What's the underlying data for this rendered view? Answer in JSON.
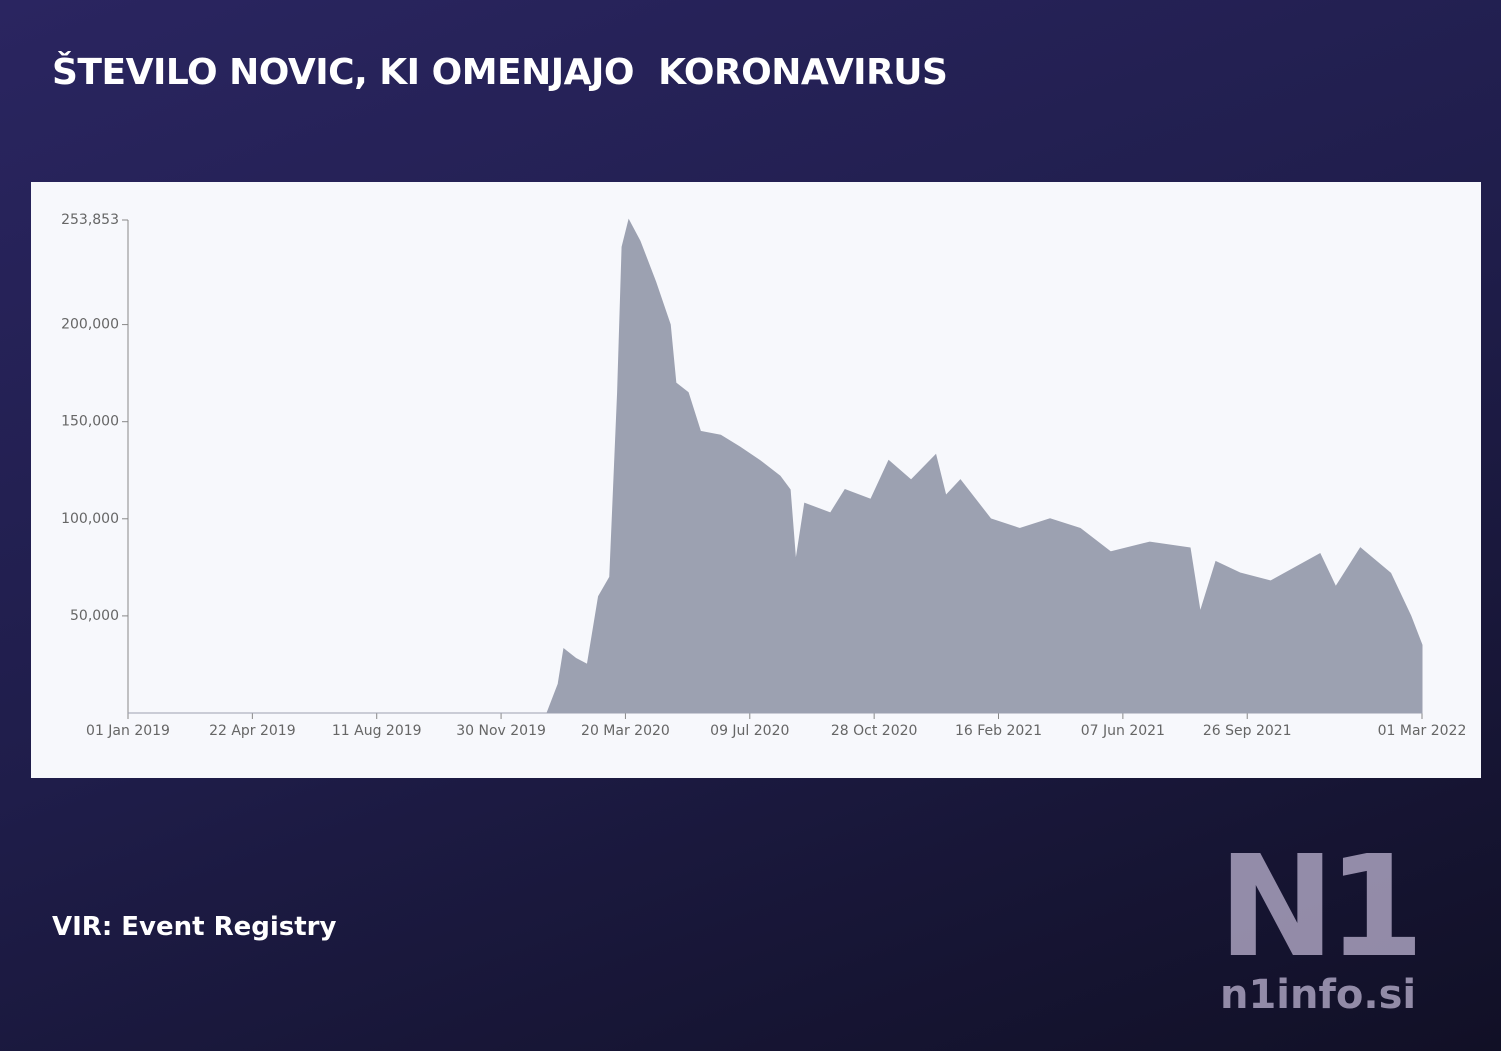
{
  "chart_data": {
    "type": "area",
    "title": "ŠTEVILO NOVIC, KI OMENJAJO  KORONAVIRUS",
    "color": "#9ca1b1",
    "x": [
      "2019-01-01",
      "2020-01-10",
      "2020-01-20",
      "2020-01-25",
      "2020-02-05",
      "2020-02-15",
      "2020-02-25",
      "2020-03-06",
      "2020-03-13",
      "2020-03-17",
      "2020-03-23",
      "2020-04-02",
      "2020-04-16",
      "2020-04-29",
      "2020-05-04",
      "2020-05-15",
      "2020-05-26",
      "2020-06-13",
      "2020-06-30",
      "2020-07-18",
      "2020-08-05",
      "2020-08-14",
      "2020-08-19",
      "2020-08-27",
      "2020-09-19",
      "2020-10-02",
      "2020-10-25",
      "2020-11-10",
      "2020-11-30",
      "2020-12-22",
      "2020-12-31",
      "2021-01-13",
      "2021-02-09",
      "2021-03-07",
      "2021-04-03",
      "2021-04-30",
      "2021-05-27",
      "2021-07-01",
      "2021-08-06",
      "2021-08-15",
      "2021-08-29",
      "2021-09-20",
      "2021-10-17",
      "2021-11-30",
      "2021-12-14",
      "2022-01-05",
      "2022-02-01",
      "2022-02-19",
      "2022-03-01"
    ],
    "values": [
      0,
      0,
      15000,
      33000,
      28000,
      25000,
      60000,
      70000,
      165000,
      240000,
      253853,
      243000,
      222000,
      200000,
      170000,
      165000,
      145000,
      143000,
      137000,
      130000,
      122000,
      115000,
      78000,
      108000,
      103000,
      115000,
      110000,
      130000,
      120000,
      133000,
      112000,
      120000,
      100000,
      95000,
      100000,
      95000,
      83000,
      88000,
      85000,
      52000,
      78000,
      72000,
      68000,
      82000,
      65000,
      85000,
      72000,
      50000,
      35000
    ],
    "xlim": [
      "2019-01-01",
      "2022-03-01"
    ],
    "xticks": [
      {
        "value": "2019-01-01",
        "label": "01 Jan 2019"
      },
      {
        "value": "2019-04-22",
        "label": "22 Apr 2019"
      },
      {
        "value": "2019-08-11",
        "label": "11 Aug 2019"
      },
      {
        "value": "2019-11-30",
        "label": "30 Nov 2019"
      },
      {
        "value": "2020-03-20",
        "label": "20 Mar 2020"
      },
      {
        "value": "2020-07-09",
        "label": "09 Jul 2020"
      },
      {
        "value": "2020-10-28",
        "label": "28 Oct 2020"
      },
      {
        "value": "2021-02-16",
        "label": "16 Feb 2021"
      },
      {
        "value": "2021-06-07",
        "label": "07 Jun 2021"
      },
      {
        "value": "2021-09-26",
        "label": "26 Sep 2021"
      },
      {
        "value": "2022-03-01",
        "label": "01 Mar 2022"
      }
    ],
    "ylim": [
      0,
      253853
    ],
    "yticks": [
      {
        "value": 50000,
        "label": "50,000"
      },
      {
        "value": 100000,
        "label": "100,000"
      },
      {
        "value": 150000,
        "label": "150,000"
      },
      {
        "value": 200000,
        "label": "200,000"
      },
      {
        "value": 253853,
        "label": "253,853"
      }
    ]
  },
  "source": "VIR: Event Registry",
  "logo": {
    "mark": "N1",
    "site": "n1info.si"
  }
}
